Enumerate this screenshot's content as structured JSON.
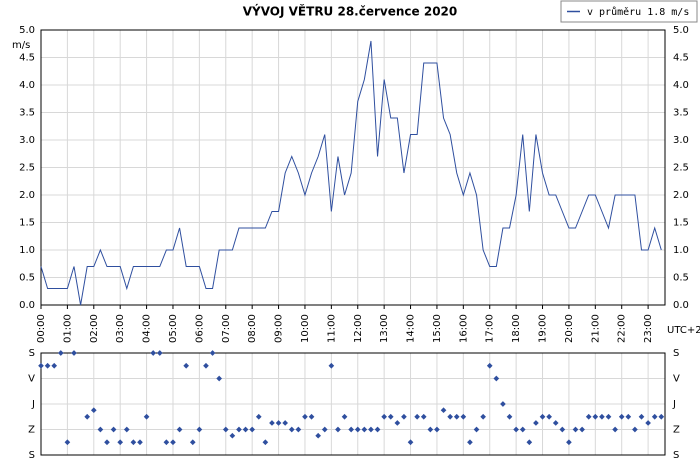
{
  "chart_data": [
    {
      "type": "line",
      "title": "VÝVOJ VĚTRU  28.července 2020",
      "y_label": "m/s",
      "x_label": "UTC+2",
      "x": [
        0,
        0.25,
        1,
        1.25,
        1.5,
        1.75,
        2,
        2.25,
        2.5,
        3,
        3.25,
        3.5,
        4.5,
        4.75,
        5,
        5.25,
        5.5,
        6,
        6.25,
        6.5,
        6.75,
        7.25,
        7.5,
        8.5,
        8.75,
        9,
        9.25,
        9.5,
        9.75,
        10,
        10.25,
        10.5,
        10.75,
        11,
        11.25,
        11.5,
        11.75,
        12,
        12.25,
        12.5,
        12.75,
        13,
        13.25,
        13.5,
        13.75,
        14,
        14.25,
        14.5,
        15,
        15.25,
        15.5,
        15.75,
        16,
        16.25,
        16.5,
        16.75,
        17,
        17.25,
        17.5,
        17.75,
        18,
        18.25,
        18.5,
        18.75,
        19,
        19.25,
        19.5,
        19.75,
        20,
        20.25,
        20.5,
        20.75,
        21,
        21.25,
        21.5,
        21.75,
        22.5,
        22.75,
        23,
        23.25,
        23.5
      ],
      "series": [
        {
          "name": "v průměru 1.8 m/s",
          "color": "#2f4f9f",
          "values": [
            0.7,
            0.3,
            0.3,
            0.7,
            0,
            0.7,
            0.7,
            1.0,
            0.7,
            0.7,
            0.3,
            0.7,
            0.7,
            1.0,
            1.0,
            1.4,
            0.7,
            0.7,
            0.3,
            0.3,
            1.0,
            1.0,
            1.4,
            1.4,
            1.7,
            1.7,
            2.4,
            2.7,
            2.4,
            2.0,
            2.4,
            2.7,
            3.1,
            1.7,
            2.7,
            2.0,
            2.4,
            3.7,
            4.1,
            4.8,
            2.7,
            4.1,
            3.4,
            3.4,
            2.4,
            3.1,
            3.1,
            4.4,
            4.4,
            3.4,
            3.1,
            2.4,
            2.0,
            2.4,
            2.0,
            1.0,
            0.7,
            0.7,
            1.4,
            1.4,
            2.0,
            3.1,
            1.7,
            3.1,
            2.4,
            2.0,
            2.0,
            1.7,
            1.4,
            1.4,
            1.7,
            2.0,
            2.0,
            1.7,
            1.4,
            2.0,
            2.0,
            1.0,
            1.0,
            1.4,
            1.0
          ]
        }
      ],
      "xlim": [
        0,
        23.64
      ],
      "ylim": [
        0,
        5
      ],
      "xticks": [
        {
          "value": 0,
          "label": "00:00"
        },
        {
          "value": 1,
          "label": "01:00"
        },
        {
          "value": 2,
          "label": "02:00"
        },
        {
          "value": 3,
          "label": "03:00"
        },
        {
          "value": 4,
          "label": "04:00"
        },
        {
          "value": 5,
          "label": "05:00"
        },
        {
          "value": 6,
          "label": "06:00"
        },
        {
          "value": 7,
          "label": "07:00"
        },
        {
          "value": 8,
          "label": "08:00"
        },
        {
          "value": 9,
          "label": "09:00"
        },
        {
          "value": 10,
          "label": "10:00"
        },
        {
          "value": 11,
          "label": "11:00"
        },
        {
          "value": 12,
          "label": "12:00"
        },
        {
          "value": 13,
          "label": "13:00"
        },
        {
          "value": 14,
          "label": "14:00"
        },
        {
          "value": 15,
          "label": "15:00"
        },
        {
          "value": 16,
          "label": "16:00"
        },
        {
          "value": 17,
          "label": "17:00"
        },
        {
          "value": 18,
          "label": "18:00"
        },
        {
          "value": 19,
          "label": "19:00"
        },
        {
          "value": 20,
          "label": "20:00"
        },
        {
          "value": 21,
          "label": "21:00"
        },
        {
          "value": 22,
          "label": "22:00"
        },
        {
          "value": 23,
          "label": "23:00"
        }
      ],
      "yticks": [
        {
          "value": 0,
          "label": "0.0"
        },
        {
          "value": 0.5,
          "label": "0.5"
        },
        {
          "value": 1,
          "label": "1.0"
        },
        {
          "value": 1.5,
          "label": "1.5"
        },
        {
          "value": 2,
          "label": "2.0"
        },
        {
          "value": 2.5,
          "label": "2.5"
        },
        {
          "value": 3,
          "label": "3.0"
        },
        {
          "value": 3.5,
          "label": "3.5"
        },
        {
          "value": 4,
          "label": "4.0"
        },
        {
          "value": 4.5,
          "label": "4.5"
        },
        {
          "value": 5,
          "label": "5.0"
        }
      ],
      "grid": true
    },
    {
      "type": "scatter",
      "color": "#2f4f9f",
      "x": [
        0,
        0.25,
        0.5,
        0.75,
        1,
        1.25,
        1.75,
        2,
        2.25,
        2.5,
        2.75,
        3,
        3.25,
        3.5,
        3.75,
        4,
        4.25,
        4.5,
        4.75,
        5,
        5.25,
        5.5,
        5.75,
        6,
        6.25,
        6.5,
        6.75,
        7,
        7.25,
        7.5,
        7.75,
        8,
        8.25,
        8.5,
        8.75,
        9,
        9.25,
        9.5,
        9.75,
        10,
        10.25,
        10.5,
        10.75,
        11,
        11.25,
        11.5,
        11.75,
        12,
        12.25,
        12.5,
        12.75,
        13,
        13.25,
        13.5,
        13.75,
        14,
        14.25,
        14.5,
        14.75,
        15,
        15.25,
        15.5,
        15.75,
        16,
        16.25,
        16.5,
        16.75,
        17,
        17.25,
        17.5,
        17.75,
        18,
        18.25,
        18.5,
        18.75,
        19,
        19.25,
        19.5,
        19.75,
        20,
        20.25,
        20.5,
        20.75,
        21,
        21.25,
        21.5,
        21.75,
        22,
        22.25,
        22.5,
        22.75,
        23,
        23.25,
        23.5
      ],
      "values": [
        45,
        45,
        45,
        0,
        315,
        0,
        225,
        202,
        270,
        315,
        270,
        315,
        270,
        315,
        315,
        225,
        0,
        0,
        315,
        315,
        270,
        45,
        315,
        270,
        45,
        0,
        90,
        270,
        292,
        270,
        270,
        270,
        225,
        315,
        247,
        247,
        247,
        270,
        270,
        225,
        225,
        292,
        270,
        45,
        270,
        225,
        270,
        270,
        270,
        270,
        270,
        225,
        225,
        247,
        225,
        315,
        225,
        225,
        270,
        270,
        202,
        225,
        225,
        225,
        315,
        270,
        225,
        45,
        90,
        180,
        225,
        270,
        270,
        315,
        247,
        225,
        225,
        247,
        270,
        315,
        270,
        270,
        225,
        225,
        225,
        225,
        270,
        225,
        225,
        270,
        225,
        247,
        225,
        225
      ],
      "xlim": [
        0,
        23.64
      ],
      "ylim": [
        0,
        360
      ],
      "yticks": [
        {
          "value": 0,
          "label": "S"
        },
        {
          "value": 90,
          "label": "V"
        },
        {
          "value": 180,
          "label": "J"
        },
        {
          "value": 270,
          "label": "Z"
        },
        {
          "value": 360,
          "label": "S"
        }
      ]
    }
  ]
}
